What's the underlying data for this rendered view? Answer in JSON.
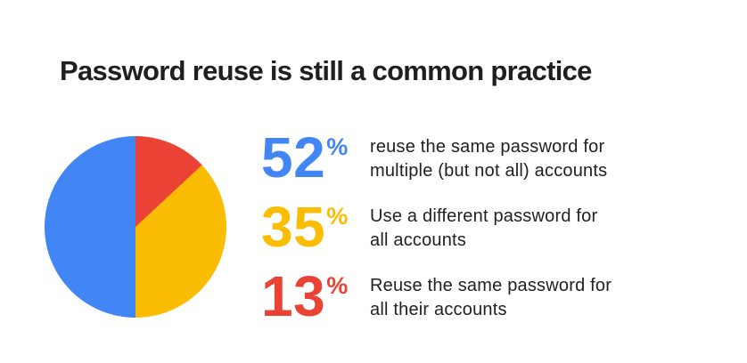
{
  "page": {
    "background": "#ffffff"
  },
  "title": {
    "text": "Password reuse is still a common practice",
    "color": "#1f1f1f"
  },
  "chart_data": {
    "type": "pie",
    "title": "Password reuse is still a common practice",
    "categories": [
      "reuse the same password for multiple (but not all) accounts",
      "Use a different password for all accounts",
      "Reuse the same password for all their accounts"
    ],
    "values": [
      52,
      35,
      13
    ],
    "colors": [
      "#4285F4",
      "#FBBC04",
      "#EA4335"
    ],
    "legend_position": "right",
    "start_angle_deg": 0,
    "segments_as_drawn": [
      {
        "label": "Reuse the same password for all their accounts",
        "value_pct": 13,
        "color": "#EA4335",
        "from_deg": 0,
        "to_deg": 47
      },
      {
        "label": "Use a different password for all accounts",
        "value_pct": 35,
        "color": "#FBBC04",
        "from_deg": 47,
        "to_deg": 180
      },
      {
        "label": "reuse the same password for multiple (but not all) accounts",
        "value_pct": 52,
        "color": "#4285F4",
        "from_deg": 180,
        "to_deg": 360
      }
    ]
  },
  "stats": [
    {
      "value": "52",
      "unit": "%",
      "color": "#4285F4",
      "line1": "reuse the same password for",
      "line2": "multiple (but not all) accounts"
    },
    {
      "value": "35",
      "unit": "%",
      "color": "#FBBC04",
      "line1": "Use a different password for",
      "line2": "all accounts"
    },
    {
      "value": "13",
      "unit": "%",
      "color": "#EA4335",
      "line1": "Reuse the same password for",
      "line2": "all their accounts"
    }
  ]
}
